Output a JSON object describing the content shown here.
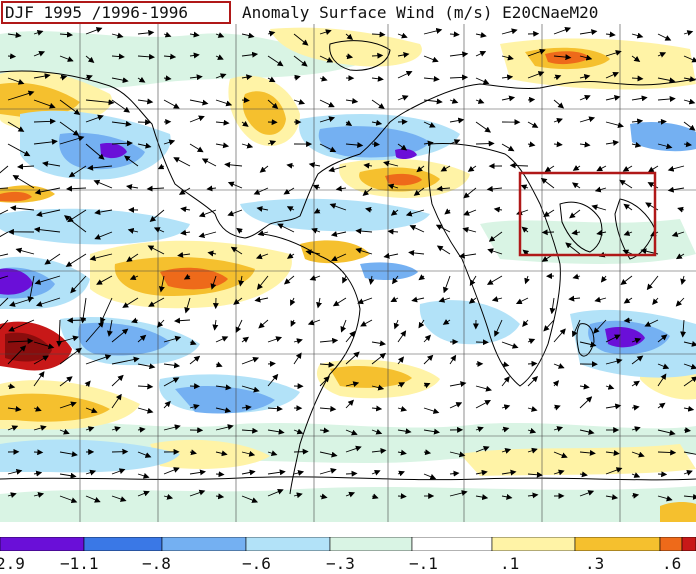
{
  "title": {
    "period": "DJF 1995 /1996-1996",
    "description": "Anomaly Surface Wind (m/s) E20CNaeM20"
  },
  "map": {
    "projection": "equirectangular",
    "longitude_range": [
      -120,
      100
    ],
    "latitude_range": [
      -70,
      80
    ],
    "gridline_spacing_deg": 20,
    "highlight_box_color": "#b01818",
    "vector_color": "#000000",
    "coastline_color": "#000000"
  },
  "colorbar": {
    "colors": [
      "#6a0fd8",
      "#3a78e6",
      "#74b0f2",
      "#b2e2f8",
      "#d9f4e4",
      "#ffffff",
      "#fff3a6",
      "#f5c02e",
      "#ee6a1a",
      "#c81818"
    ],
    "labels": [
      "2.9",
      "−1.1",
      "−.8",
      "−.6",
      "−.3",
      "−.1",
      ".1",
      ".3",
      ".6"
    ]
  }
}
